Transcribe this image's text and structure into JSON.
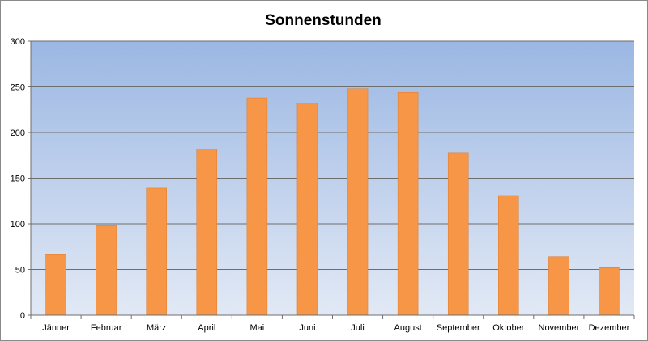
{
  "chart_data": {
    "type": "bar",
    "title": "Sonnenstunden",
    "xlabel": "",
    "ylabel": "",
    "categories": [
      "Jänner",
      "Februar",
      "März",
      "April",
      "Mai",
      "Juni",
      "Juli",
      "August",
      "September",
      "Oktober",
      "November",
      "Dezember"
    ],
    "values": [
      67,
      98,
      139,
      182,
      238,
      232,
      248,
      244,
      178,
      131,
      64,
      52
    ],
    "ylim": [
      0,
      300
    ],
    "yticks": [
      "0",
      "50",
      "100",
      "150",
      "200",
      "250",
      "300"
    ],
    "grid": true,
    "legend": "none"
  },
  "colors": {
    "bar_fill": "#f79646",
    "bar_stroke": "#e07b2a",
    "plot_bg_top": "#9bb7e3",
    "plot_bg_bottom": "#e2e9f5",
    "gridline": "#6e6e6e",
    "axis": "#6e6e6e"
  }
}
